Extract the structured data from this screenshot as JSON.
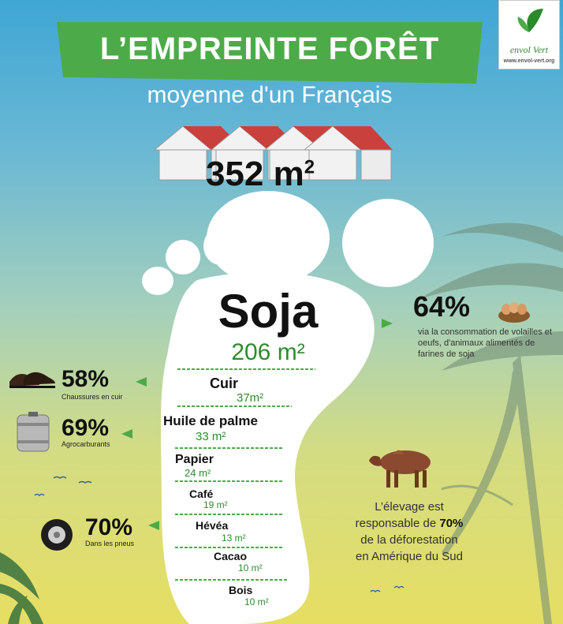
{
  "header": {
    "title": "L’EMPREINTE FORÊT",
    "subtitle": "moyenne d'un Français"
  },
  "logo": {
    "name": "envol Vert",
    "url": "www.envol-vert.org"
  },
  "total": {
    "value": "352 m",
    "unit_exp": "2"
  },
  "footprint": {
    "main_label": "Soja",
    "main_value": "206 m²",
    "items": [
      {
        "name": "Cuir",
        "value": "37m²"
      },
      {
        "name": "Huile de palme",
        "value": "33 m²"
      },
      {
        "name": "Papier",
        "value": "24 m²"
      },
      {
        "name": "Café",
        "value": "19 m²"
      },
      {
        "name": "Hévéa",
        "value": "13 m²"
      },
      {
        "name": "Cacao",
        "value": "10 m²"
      },
      {
        "name": "Bois",
        "value": "10 m²"
      }
    ]
  },
  "stats": {
    "soja": {
      "percent": "64%",
      "label": "via la consommation de volailles et oeufs, d'animaux alimentés de farines de soja"
    },
    "cuir": {
      "percent": "58%",
      "label": "Chaussures en cuir"
    },
    "palme": {
      "percent": "69%",
      "label": "Agrocarburants"
    },
    "hevea": {
      "percent": "70%",
      "label": "Dans les pneus"
    }
  },
  "elevage": {
    "line1": "L’élevage est",
    "line2_pre": "responsable de ",
    "line2_pct": "70%",
    "line3": "de la déforestation",
    "line4": "en Amérique du Sud"
  },
  "colors": {
    "banner_green": "#4cab48",
    "accent_green": "#2d8c2d",
    "footprint_white": "#ffffff"
  }
}
